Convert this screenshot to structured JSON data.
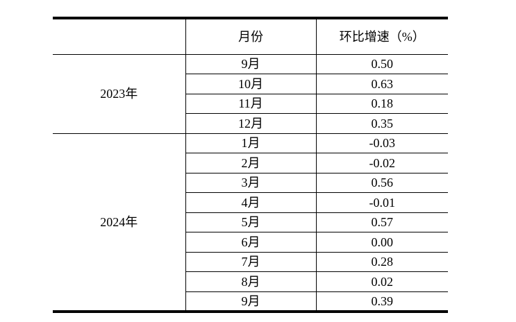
{
  "table": {
    "header": {
      "year": "",
      "month": "月份",
      "growth": "环比增速（%）"
    },
    "groups": [
      {
        "year": "2023年",
        "rows": [
          {
            "month": "9月",
            "value": "0.50"
          },
          {
            "month": "10月",
            "value": "0.63"
          },
          {
            "month": "11月",
            "value": "0.18"
          },
          {
            "month": "12月",
            "value": "0.35"
          }
        ]
      },
      {
        "year": "2024年",
        "rows": [
          {
            "month": "1月",
            "value": "-0.03"
          },
          {
            "month": "2月",
            "value": "-0.02"
          },
          {
            "month": "3月",
            "value": "0.56"
          },
          {
            "month": "4月",
            "value": "-0.01"
          },
          {
            "month": "5月",
            "value": "0.57"
          },
          {
            "month": "6月",
            "value": "0.00"
          },
          {
            "month": "7月",
            "value": "0.28"
          },
          {
            "month": "8月",
            "value": "0.02"
          },
          {
            "month": "9月",
            "value": "0.39"
          }
        ]
      }
    ]
  },
  "colors": {
    "border": "#000000",
    "text": "#000000",
    "background": "#ffffff"
  }
}
